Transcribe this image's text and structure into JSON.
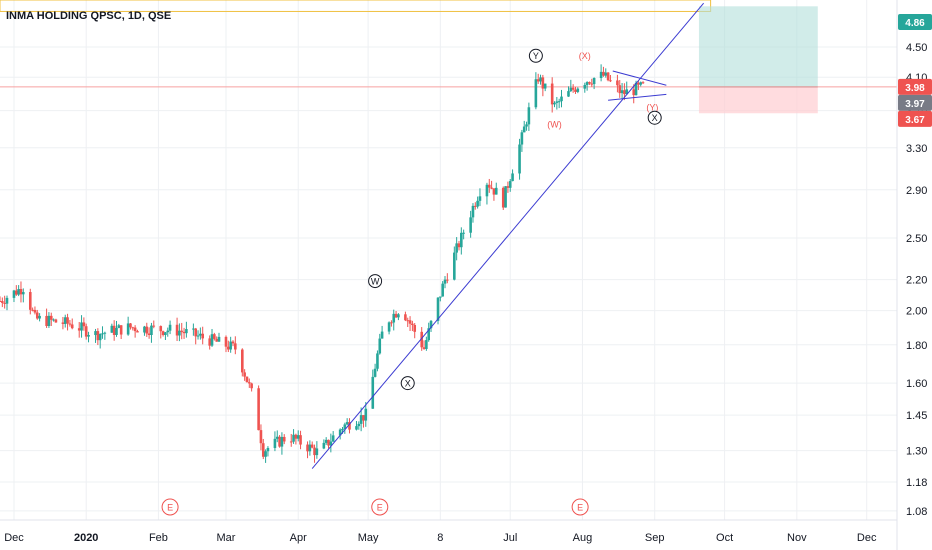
{
  "title": "INMA HOLDING QPSC, 1D, QSE",
  "colors": {
    "up": "#26a69a",
    "down": "#ef5350",
    "grid": "#eef0f3",
    "trendline": "#3b3bd1",
    "yellow_box": "#f0c040",
    "target_zone": "#b2dfdb",
    "stop_zone": "#ffcdd2",
    "current_line": "#f7a1a0",
    "axis_bg": "#ffffff"
  },
  "chart_data": {
    "type": "candlestick",
    "x_axis": {
      "start": "2019-11-25",
      "end": "2020-12-14",
      "ticks": [
        {
          "date": "2019-12-01",
          "label": "Dec",
          "bold": false
        },
        {
          "date": "2020-01-01",
          "label": "2020",
          "bold": true
        },
        {
          "date": "2020-02-01",
          "label": "Feb",
          "bold": false
        },
        {
          "date": "2020-03-01",
          "label": "Mar",
          "bold": false
        },
        {
          "date": "2020-04-01",
          "label": "Apr",
          "bold": false
        },
        {
          "date": "2020-05-01",
          "label": "May",
          "bold": false
        },
        {
          "date": "2020-06-01",
          "label": "8",
          "bold": false
        },
        {
          "date": "2020-07-01",
          "label": "Jul",
          "bold": false
        },
        {
          "date": "2020-08-01",
          "label": "Aug",
          "bold": false
        },
        {
          "date": "2020-09-01",
          "label": "Sep",
          "bold": false
        },
        {
          "date": "2020-10-01",
          "label": "Oct",
          "bold": false
        },
        {
          "date": "2020-11-01",
          "label": "Nov",
          "bold": false
        },
        {
          "date": "2020-12-01",
          "label": "Dec",
          "bold": false
        }
      ]
    },
    "y_axis": {
      "scale": "log",
      "range": [
        1.05,
        5.2
      ],
      "ticks": [
        "4.50",
        "4.10",
        "3.70",
        "3.30",
        "2.90",
        "2.50",
        "2.20",
        "2.00",
        "1.80",
        "1.60",
        "1.45",
        "1.30",
        "1.18",
        "1.08"
      ]
    },
    "price_tags": [
      {
        "value": 4.86,
        "label": "4.86",
        "color": "#26a69a"
      },
      {
        "value": 3.98,
        "label": "3.98",
        "color": "#ef5350"
      },
      {
        "value": 3.97,
        "label": "3.97",
        "color": "#787b86"
      },
      {
        "value": 3.67,
        "label": "3.67",
        "color": "#ef5350"
      }
    ],
    "key_points": [
      [
        "2019-11-25",
        2.06
      ],
      [
        "2019-12-05",
        2.15
      ],
      [
        "2019-12-10",
        1.95
      ],
      [
        "2019-12-25",
        1.92
      ],
      [
        "2020-01-05",
        1.86
      ],
      [
        "2020-01-20",
        1.9
      ],
      [
        "2020-02-10",
        1.88
      ],
      [
        "2020-02-25",
        1.82
      ],
      [
        "2020-03-05",
        1.78
      ],
      [
        "2020-03-12",
        1.55
      ],
      [
        "2020-03-17",
        1.3
      ],
      [
        "2020-03-28",
        1.36
      ],
      [
        "2020-04-10",
        1.29
      ],
      [
        "2020-04-20",
        1.4
      ],
      [
        "2020-04-30",
        1.45
      ],
      [
        "2020-05-08",
        1.92
      ],
      [
        "2020-05-15",
        2.02
      ],
      [
        "2020-05-25",
        1.78
      ],
      [
        "2020-06-03",
        2.2
      ],
      [
        "2020-06-10",
        2.5
      ],
      [
        "2020-06-20",
        3.0
      ],
      [
        "2020-06-28",
        2.8
      ],
      [
        "2020-07-06",
        3.4
      ],
      [
        "2020-07-13",
        4.1
      ],
      [
        "2020-07-20",
        3.75
      ],
      [
        "2020-08-01",
        4.05
      ],
      [
        "2020-08-10",
        4.12
      ],
      [
        "2020-08-18",
        3.9
      ],
      [
        "2020-08-27",
        3.98
      ]
    ],
    "annotations": [
      {
        "label": "Y",
        "date": "2020-07-12",
        "price": 4.38,
        "color": "#131722",
        "circled": true
      },
      {
        "label": "(X)",
        "date": "2020-08-02",
        "price": 4.38,
        "color": "#ef5350",
        "circled": false
      },
      {
        "label": "(W)",
        "date": "2020-07-20",
        "price": 3.55,
        "color": "#ef5350",
        "circled": false
      },
      {
        "label": "(Y)",
        "date": "2020-08-31",
        "price": 3.74,
        "color": "#ef5350",
        "circled": false
      },
      {
        "label": "X",
        "date": "2020-09-01",
        "price": 3.62,
        "color": "#131722",
        "circled": true
      },
      {
        "label": "W",
        "date": "2020-05-04",
        "price": 2.19,
        "color": "#131722",
        "circled": true
      },
      {
        "label": "X",
        "date": "2020-05-18",
        "price": 1.6,
        "color": "#131722",
        "circled": true
      }
    ],
    "events": [
      {
        "label": "E",
        "date": "2020-02-06"
      },
      {
        "label": "E",
        "date": "2020-05-06"
      },
      {
        "label": "E",
        "date": "2020-07-31"
      }
    ],
    "trendline": {
      "from": [
        "2020-04-07",
        1.23
      ],
      "to": [
        "2020-09-22",
        5.15
      ]
    },
    "triangle": {
      "upper": [
        [
          "2020-08-14",
          4.18
        ],
        [
          "2020-09-06",
          4.0
        ]
      ],
      "lower": [
        [
          "2020-08-12",
          3.82
        ],
        [
          "2020-09-06",
          3.89
        ]
      ]
    },
    "target_zone": {
      "from": "2020-09-20",
      "to": "2020-12-12",
      "top": 5.1,
      "entry": 3.98,
      "stop": 3.67
    },
    "resistance_box": {
      "from": "2019-11-25",
      "to": "2020-12-12",
      "top": 5.2,
      "bottom": 5.02
    }
  }
}
